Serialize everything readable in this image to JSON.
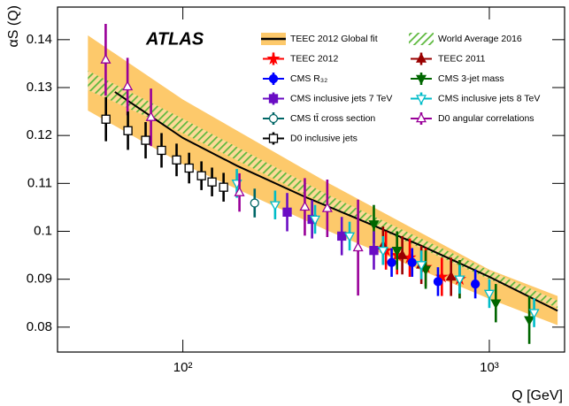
{
  "chart_data": {
    "type": "errorbar",
    "title": "ATLAS",
    "x_label": "Q [GeV]",
    "y_label": "αS (Q)",
    "log_x": true,
    "xlim": [
      39,
      1760
    ],
    "ylim": [
      0.0748,
      0.1468
    ],
    "xticks": [
      {
        "value": 100,
        "label": "10²"
      },
      {
        "value": 1000,
        "label": "10³"
      }
    ],
    "yticks": [
      0.08,
      0.09,
      0.1,
      0.11,
      0.12,
      0.13,
      0.14
    ],
    "series": [
      {
        "name": "TEEC 2012 Global fit",
        "kind": "fit",
        "color": "#000000",
        "x": [
          60,
          100,
          150,
          250,
          360,
          600,
          1000,
          1670
        ],
        "values": [
          0.1291,
          0.1195,
          0.1137,
          0.1072,
          0.103,
          0.097,
          0.0905,
          0.0834
        ],
        "band": {
          "color": "#fdc96b",
          "x": [
            49,
            100,
            300,
            1000,
            1670
          ],
          "upper": [
            0.1409,
            0.1275,
            0.11,
            0.092,
            0.0865
          ],
          "lower": [
            0.1252,
            0.114,
            0.1,
            0.0859,
            0.0804
          ]
        }
      },
      {
        "name": "World Average 2016",
        "kind": "band",
        "color": "#5cb83c",
        "x": [
          49,
          100,
          300,
          1000,
          1670
        ],
        "upper": [
          0.1335,
          0.1235,
          0.1075,
          0.0918,
          0.0855
        ],
        "lower": [
          0.1295,
          0.1205,
          0.1052,
          0.09,
          0.084
        ]
      },
      {
        "name": "TEEC 2012",
        "kind": "points",
        "color": "#ff0000",
        "marker": "star",
        "filled": true,
        "x": [
          460,
          500,
          550,
          620,
          700,
          800
        ],
        "values": [
          0.096,
          0.095,
          0.0945,
          0.0925,
          0.0905,
          0.09
        ],
        "errors": [
          0.004,
          0.004,
          0.004,
          0.004,
          0.004,
          0.004
        ]
      },
      {
        "name": "TEEC 2011",
        "kind": "points",
        "color": "#990000",
        "marker": "triangle-up",
        "filled": true,
        "x": [
          450,
          520,
          600,
          750
        ],
        "values": [
          0.097,
          0.095,
          0.093,
          0.0905
        ],
        "errors": [
          0.004,
          0.004,
          0.004,
          0.004
        ]
      },
      {
        "name": "CMS R₃₂",
        "kind": "points",
        "color": "#0000ff",
        "marker": "circle",
        "filled": true,
        "x": [
          480,
          560,
          680,
          900
        ],
        "values": [
          0.0935,
          0.0935,
          0.0895,
          0.089
        ],
        "errors": [
          0.003,
          0.003,
          0.003,
          0.003
        ]
      },
      {
        "name": "CMS 3-jet mass",
        "kind": "points",
        "color": "#006600",
        "marker": "triangle-down",
        "filled": true,
        "x": [
          420,
          500,
          620,
          800,
          1050,
          1350
        ],
        "values": [
          0.1015,
          0.096,
          0.092,
          0.09,
          0.085,
          0.0815
        ],
        "errors": [
          0.004,
          0.004,
          0.004,
          0.004,
          0.004,
          0.005
        ]
      },
      {
        "name": "CMS inclusive jets 7 TeV",
        "kind": "points",
        "color": "#6a0dc4",
        "marker": "square",
        "filled": true,
        "x": [
          219,
          264,
          330,
          420
        ],
        "values": [
          0.104,
          0.1025,
          0.099,
          0.096
        ],
        "errors": [
          0.004,
          0.004,
          0.004,
          0.004
        ]
      },
      {
        "name": "CMS inclusive jets 8 TeV",
        "kind": "points",
        "color": "#00bcc8",
        "marker": "triangle-down",
        "filled": false,
        "x": [
          150,
          200,
          270,
          350,
          450,
          600,
          800,
          1000,
          1400
        ],
        "values": [
          0.11,
          0.1055,
          0.1025,
          0.099,
          0.096,
          0.093,
          0.09,
          0.087,
          0.083
        ],
        "errors": [
          0.003,
          0.003,
          0.003,
          0.003,
          0.003,
          0.003,
          0.003,
          0.003,
          0.003
        ]
      },
      {
        "name": "CMS tt̄ cross section",
        "kind": "points",
        "color": "#006666",
        "marker": "circle",
        "filled": false,
        "x": [
          171.5
        ],
        "values": [
          0.1059
        ],
        "errors": [
          0.003
        ]
      },
      {
        "name": "D0 angular correlations",
        "kind": "points",
        "color": "#990099",
        "marker": "triangle-up",
        "filled": false,
        "x": [
          56,
          66,
          78.7,
          153,
          250,
          296,
          373
        ],
        "values": [
          0.1358,
          0.1302,
          0.1238,
          0.1081,
          0.1051,
          0.1048,
          0.0966
        ],
        "errors": [
          0.0075,
          0.006,
          0.006,
          0.004,
          0.006,
          0.006,
          0.01
        ]
      },
      {
        "name": "D0 inclusive jets",
        "kind": "points",
        "color": "#000000",
        "marker": "square",
        "filled": false,
        "x": [
          56.1,
          66.2,
          75.6,
          85.2,
          95.4,
          104.8,
          115,
          124.5,
          135.8
        ],
        "values": [
          0.1234,
          0.121,
          0.119,
          0.1169,
          0.1149,
          0.1132,
          0.1116,
          0.1103,
          0.1092
        ],
        "errors": [
          0.0046,
          0.004,
          0.0038,
          0.0036,
          0.0034,
          0.0032,
          0.003,
          0.003,
          0.003
        ]
      }
    ]
  }
}
